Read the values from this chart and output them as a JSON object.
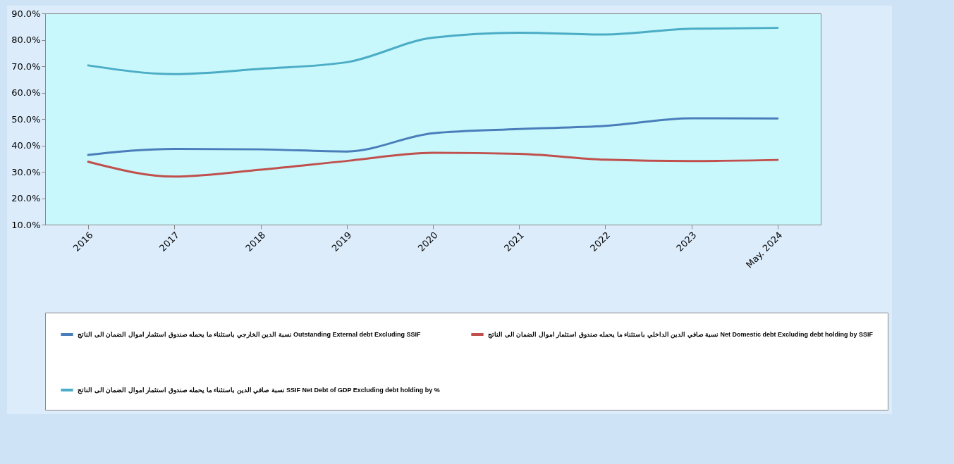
{
  "chart_data": {
    "type": "line",
    "categories": [
      "2016",
      "2017",
      "2018",
      "2019",
      "2020",
      "2021",
      "2022",
      "2023",
      "May. 2024"
    ],
    "series": [
      {
        "name": "نسبة الدين الخارجي باستثناء ما يحمله صندوق استثمار اموال الضمان الى الناتج  Outstanding External debt Excluding SSIF",
        "color": "#4a7ebb",
        "values": [
          36.4,
          38.7,
          38.5,
          37.7,
          44.6,
          46.2,
          47.4,
          50.3,
          50.2
        ]
      },
      {
        "name": "نسبة صافي الدين الداخلي باستثناء ما يحمله صندوق استثمار اموال الضمان الى الناتج Net Domestic debt Excluding debt holding by SSIF",
        "color": "#c0504d",
        "values": [
          33.8,
          28.2,
          30.8,
          34.1,
          37.2,
          36.8,
          34.6,
          34.1,
          34.5
        ]
      },
      {
        "name": "نسبة صافي الدين باستثناء ما يحمله صندوق استثمار اموال الضمان الى الناتج  SSIF Net  Debt of GDP Excluding debt holding by %",
        "color": "#4bacc6",
        "values": [
          70.3,
          67.0,
          69.0,
          71.5,
          80.8,
          82.7,
          82.0,
          84.2,
          84.5
        ]
      }
    ],
    "ylim": [
      10,
      90
    ],
    "yticks": [
      {
        "value": 10,
        "label": "10.0%"
      },
      {
        "value": 20,
        "label": "20.0%"
      },
      {
        "value": 30,
        "label": "30.0%"
      },
      {
        "value": 40,
        "label": "40.0%"
      },
      {
        "value": 50,
        "label": "50.0%"
      },
      {
        "value": 60,
        "label": "60.0%"
      },
      {
        "value": 70,
        "label": "70.0%"
      },
      {
        "value": 80,
        "label": "80.0%"
      },
      {
        "value": 90,
        "label": "90.0%"
      }
    ],
    "grid": false,
    "legend": "bottom",
    "marker": "none",
    "line_style": "solid"
  }
}
